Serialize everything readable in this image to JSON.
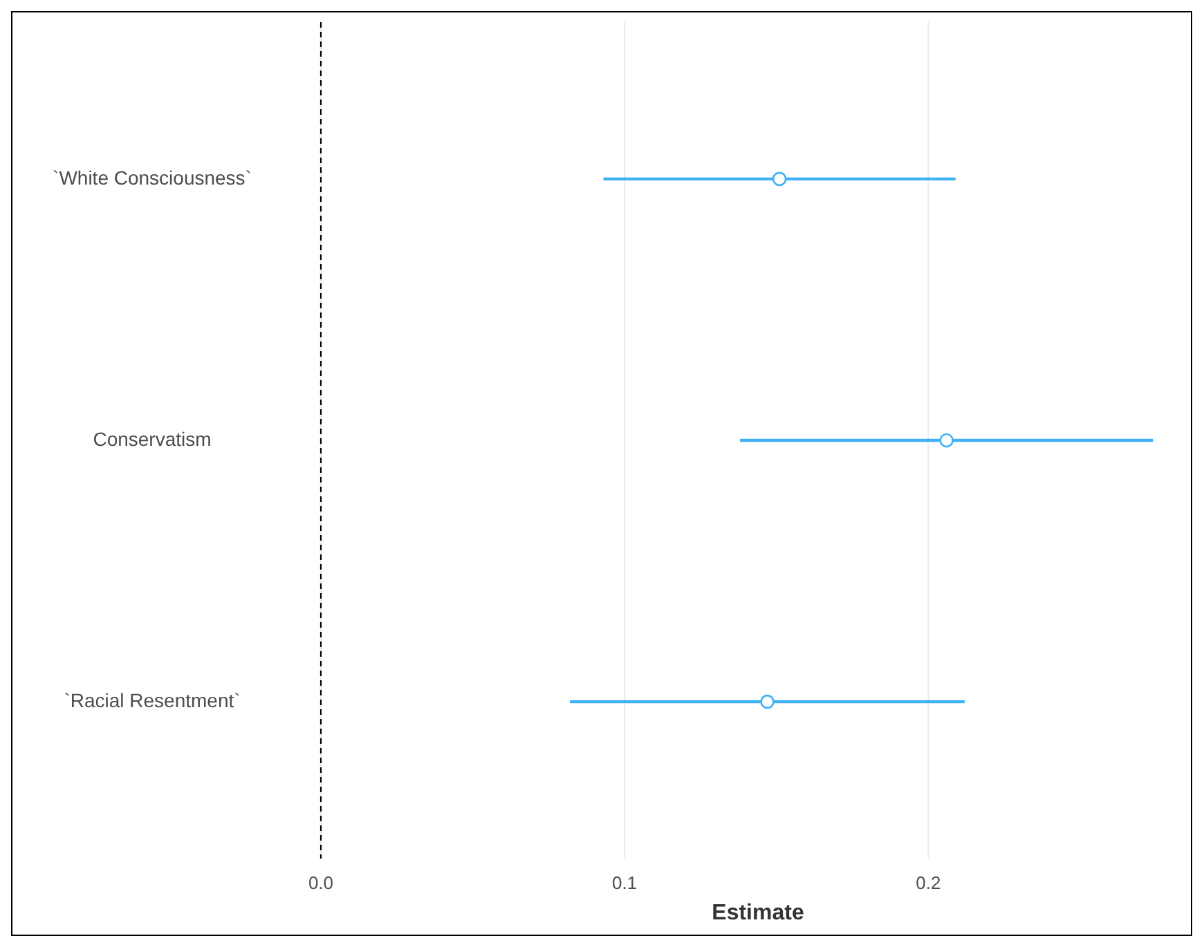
{
  "chart_data": {
    "type": "scatter",
    "orientation": "horizontal",
    "xlabel": "Estimate",
    "categories": [
      "`White Consciousness`",
      "Conservatism",
      "`Racial Resentment`"
    ],
    "values": [
      0.151,
      0.206,
      0.147
    ],
    "errors": [
      [
        0.093,
        0.209
      ],
      [
        0.138,
        0.274
      ],
      [
        0.082,
        0.212
      ]
    ],
    "color": "#3fb1f5",
    "marker": "circle",
    "xlim": [
      0,
      0.286
    ],
    "xticks": [
      {
        "value": 0,
        "label": "0.0"
      },
      0.1,
      0.2
    ],
    "grid": "x",
    "ref_lines": [
      {
        "axis": "x",
        "value": 0,
        "line_style": "dashed",
        "color": "#000000"
      }
    ]
  }
}
